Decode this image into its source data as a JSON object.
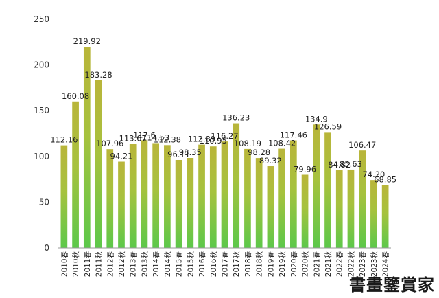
{
  "chart_data": {
    "type": "bar",
    "categories": [
      "2010春",
      "2010秋",
      "2011春",
      "2011秋",
      "2012春",
      "2012秋",
      "2013春",
      "2013秋",
      "2014春",
      "2014秋",
      "2015春",
      "2015秋",
      "2016春",
      "2016秋",
      "2017春",
      "2017秋",
      "2018春",
      "2018秋",
      "2019春",
      "2019秋",
      "2020春",
      "2020秋",
      "2021春",
      "2021秋",
      "2022春",
      "2022秋",
      "2023春",
      "2023秋",
      "2024春"
    ],
    "values": [
      112.16,
      160.08,
      219.92,
      183.28,
      107.96,
      94.21,
      113.67,
      117.6,
      114.53,
      112.38,
      96.11,
      98.35,
      112.89,
      110.95,
      116.27,
      136.23,
      108.19,
      98.28,
      89.32,
      108.42,
      117.46,
      79.96,
      134.9,
      126.59,
      84.82,
      85.63,
      106.47,
      74.2,
      68.85
    ],
    "value_labels": [
      "112.16",
      "160.08",
      "219.92",
      "183.28",
      "107.96",
      "94.21",
      "113.67",
      "117.6",
      "114.53",
      "112.38",
      "96.11",
      "98.35",
      "112.89",
      "110.95",
      "116.27",
      "136.23",
      "108.19",
      "98.28",
      "89.32",
      "108.42",
      "117.46",
      "79.96",
      "134.9",
      "126.59",
      "84.82",
      "85.63",
      "106.47",
      "74.20",
      "68.85"
    ],
    "yticks": [
      "0",
      "50",
      "100",
      "150",
      "200",
      "250"
    ],
    "ylim": [
      0,
      250
    ],
    "grid": false,
    "legend": "none",
    "colors": {
      "bar_top": "#b9b53a",
      "bar_mid": "#a6c23e",
      "bar_bottom": "#5cc84a"
    }
  },
  "watermark": "書畫鑒賞家"
}
